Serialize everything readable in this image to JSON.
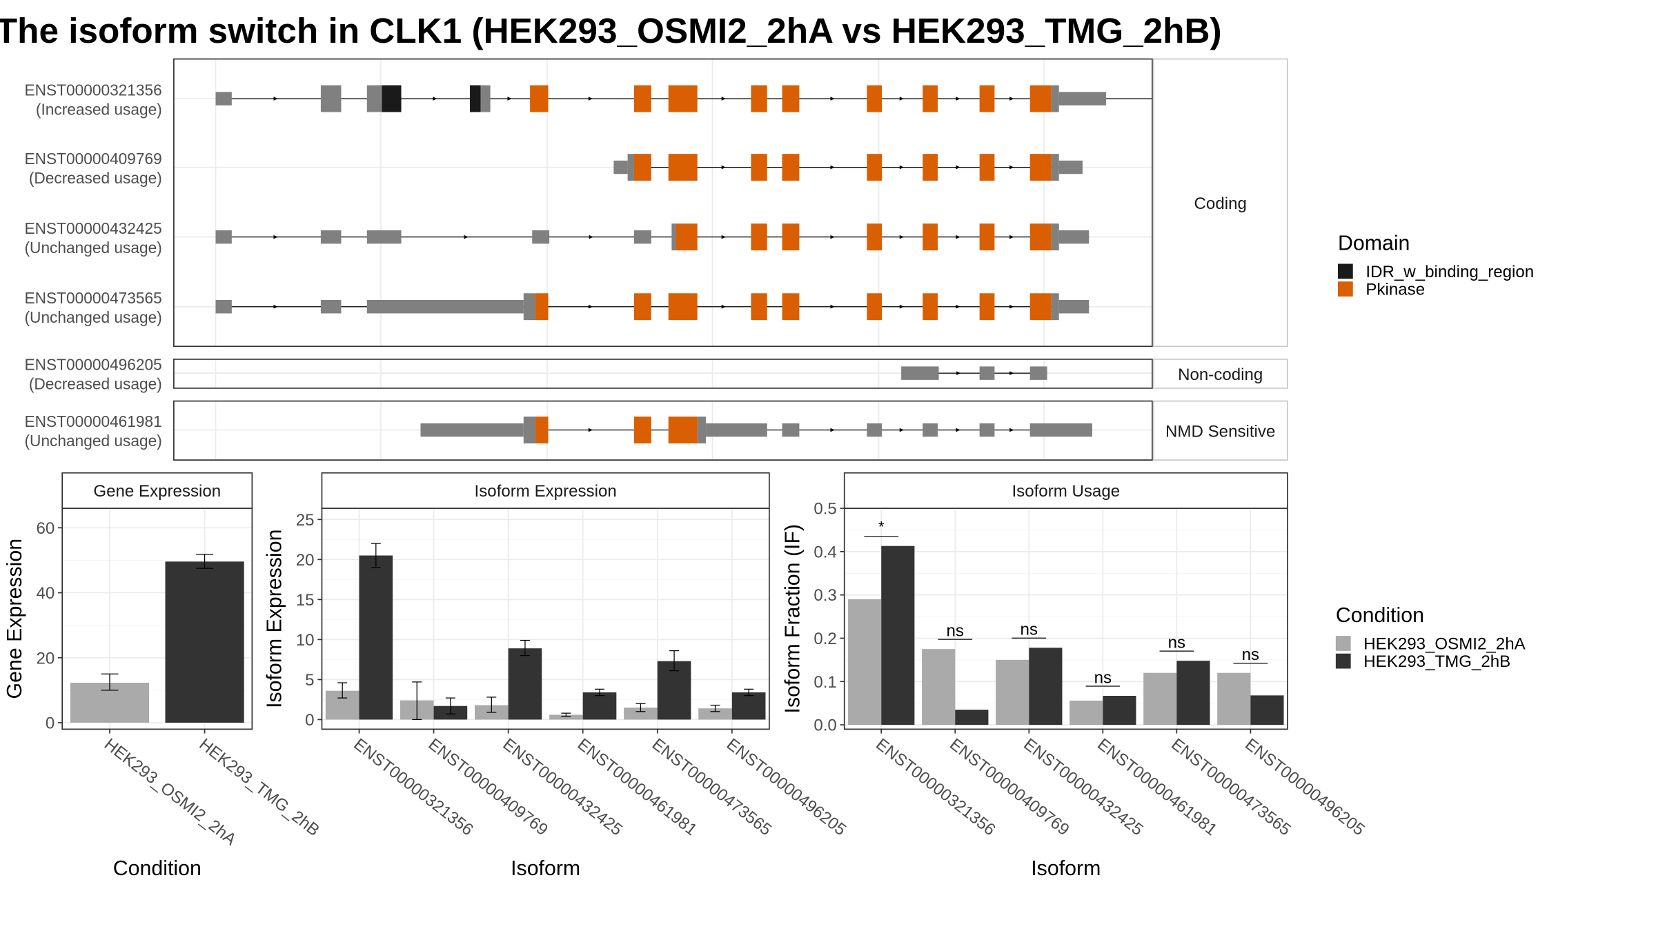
{
  "title": "The isoform switch in CLK1 (HEK293_OSMI2_2hA vs HEK293_TMG_2hB)",
  "colors": {
    "utr": "#808080",
    "idr": "#1a1a1a",
    "pkinase": "#d95f02",
    "cond_a": "#aaaaaa",
    "cond_b": "#333333",
    "grid": "#ebebeb",
    "panel_border": "#333333",
    "strip_border": "#c8c8c8"
  },
  "structure": {
    "facets": [
      "Coding",
      "Non-coding",
      "NMD Sensitive"
    ],
    "legend": {
      "title": "Domain",
      "items": [
        {
          "label": "IDR_w_binding_region",
          "color_key": "idr"
        },
        {
          "label": "Pkinase",
          "color_key": "pkinase"
        }
      ]
    },
    "transcripts": [
      {
        "id": "ENST00000321356",
        "usage": "(Increased usage)",
        "facet": 0,
        "line": [
          63,
          1013
        ],
        "blocks": [
          [
            63,
            78,
            "utr",
            0
          ],
          [
            161,
            180,
            "utr",
            1
          ],
          [
            204,
            218,
            "utr",
            1
          ],
          [
            218,
            236,
            "idr",
            1
          ],
          [
            300,
            310,
            "idr",
            1
          ],
          [
            310,
            319,
            "utr",
            1
          ],
          [
            356,
            373,
            "pkinase",
            1
          ],
          [
            453,
            469,
            "pkinase",
            1
          ],
          [
            485,
            512,
            "pkinase",
            1
          ],
          [
            562,
            577,
            "pkinase",
            1
          ],
          [
            591,
            607,
            "pkinase",
            1
          ],
          [
            670,
            684,
            "pkinase",
            1
          ],
          [
            722,
            736,
            "pkinase",
            1
          ],
          [
            775,
            789,
            "pkinase",
            1
          ],
          [
            822,
            842,
            "pkinase",
            1
          ],
          [
            842,
            849,
            "utr",
            1
          ],
          [
            849,
            893,
            "utr",
            0
          ]
        ]
      },
      {
        "id": "ENST00000409769",
        "usage": "(Decreased usage)",
        "facet": 0,
        "line": [
          434,
          871
        ],
        "blocks": [
          [
            434,
            447,
            "utr",
            0
          ],
          [
            447,
            453,
            "utr",
            1
          ],
          [
            453,
            469,
            "pkinase",
            1
          ],
          [
            485,
            512,
            "pkinase",
            1
          ],
          [
            562,
            577,
            "pkinase",
            1
          ],
          [
            591,
            607,
            "pkinase",
            1
          ],
          [
            670,
            684,
            "pkinase",
            1
          ],
          [
            722,
            736,
            "pkinase",
            1
          ],
          [
            775,
            789,
            "pkinase",
            1
          ],
          [
            822,
            842,
            "pkinase",
            1
          ],
          [
            842,
            849,
            "utr",
            1
          ],
          [
            849,
            871,
            "utr",
            0
          ]
        ]
      },
      {
        "id": "ENST00000432425",
        "usage": "(Unchanged usage)",
        "facet": 0,
        "line": [
          63,
          877
        ],
        "blocks": [
          [
            63,
            78,
            "utr",
            0
          ],
          [
            161,
            180,
            "utr",
            0
          ],
          [
            204,
            236,
            "utr",
            0
          ],
          [
            358,
            374,
            "utr",
            0
          ],
          [
            453,
            469,
            "utr",
            0
          ],
          [
            488,
            492,
            "utr",
            1
          ],
          [
            492,
            512,
            "pkinase",
            1
          ],
          [
            562,
            577,
            "pkinase",
            1
          ],
          [
            591,
            607,
            "pkinase",
            1
          ],
          [
            670,
            684,
            "pkinase",
            1
          ],
          [
            722,
            736,
            "pkinase",
            1
          ],
          [
            775,
            789,
            "pkinase",
            1
          ],
          [
            822,
            842,
            "pkinase",
            1
          ],
          [
            842,
            849,
            "utr",
            1
          ],
          [
            849,
            877,
            "utr",
            0
          ]
        ]
      },
      {
        "id": "ENST00000473565",
        "usage": "(Unchanged usage)",
        "facet": 0,
        "line": [
          63,
          877
        ],
        "blocks": [
          [
            63,
            78,
            "utr",
            0
          ],
          [
            161,
            180,
            "utr",
            0
          ],
          [
            204,
            350,
            "utr",
            0
          ],
          [
            350,
            361,
            "utr",
            1
          ],
          [
            361,
            373,
            "pkinase",
            1
          ],
          [
            453,
            469,
            "pkinase",
            1
          ],
          [
            485,
            512,
            "pkinase",
            1
          ],
          [
            562,
            577,
            "pkinase",
            1
          ],
          [
            591,
            607,
            "pkinase",
            1
          ],
          [
            670,
            684,
            "pkinase",
            1
          ],
          [
            722,
            736,
            "pkinase",
            1
          ],
          [
            775,
            789,
            "pkinase",
            1
          ],
          [
            822,
            842,
            "pkinase",
            1
          ],
          [
            842,
            849,
            "utr",
            1
          ],
          [
            849,
            877,
            "utr",
            0
          ]
        ]
      },
      {
        "id": "ENST00000496205",
        "usage": "(Decreased usage)",
        "facet": 1,
        "line": [
          702,
          838
        ],
        "blocks": [
          [
            702,
            737,
            "utr",
            0
          ],
          [
            775,
            789,
            "utr",
            0
          ],
          [
            822,
            838,
            "utr",
            0
          ]
        ]
      },
      {
        "id": "ENST00000461981",
        "usage": "(Unchanged usage)",
        "facet": 2,
        "line": [
          254,
          880
        ],
        "blocks": [
          [
            254,
            350,
            "utr",
            0
          ],
          [
            350,
            361,
            "utr",
            1
          ],
          [
            361,
            373,
            "pkinase",
            1
          ],
          [
            453,
            469,
            "pkinase",
            1
          ],
          [
            485,
            512,
            "pkinase",
            1
          ],
          [
            512,
            520,
            "utr",
            1
          ],
          [
            520,
            577,
            "utr",
            0
          ],
          [
            591,
            607,
            "utr",
            0
          ],
          [
            670,
            684,
            "utr",
            0
          ],
          [
            722,
            736,
            "utr",
            0
          ],
          [
            775,
            789,
            "utr",
            0
          ],
          [
            822,
            880,
            "utr",
            0
          ]
        ]
      }
    ]
  },
  "chart_data": [
    {
      "type": "bar",
      "title": "Gene Expression",
      "xlabel": "Condition",
      "ylabel": "Gene Expression",
      "categories": [
        "HEK293_OSMI2_2hA",
        "HEK293_TMG_2hB"
      ],
      "values": [
        12.3,
        49.6
      ],
      "errors": [
        [
          10,
          15
        ],
        [
          47.5,
          51.8
        ]
      ],
      "color_keys": [
        "cond_a",
        "cond_b"
      ],
      "ylim": [
        -2,
        66
      ],
      "yticks": [
        0,
        20,
        40,
        60
      ],
      "grid": true
    },
    {
      "type": "bar",
      "title": "Isoform Expression",
      "xlabel": "Isoform",
      "ylabel": "Isoform Expression",
      "categories": [
        "ENST00000321356",
        "ENST00000409769",
        "ENST00000432425",
        "ENST00000461981",
        "ENST00000473565",
        "ENST00000496205"
      ],
      "series": [
        {
          "name": "HEK293_OSMI2_2hA",
          "color_key": "cond_a",
          "values": [
            3.6,
            2.4,
            1.8,
            0.6,
            1.5,
            1.4
          ],
          "errors": [
            [
              2.7,
              4.6
            ],
            [
              0,
              4.7
            ],
            [
              0.9,
              2.8
            ],
            [
              0.4,
              0.8
            ],
            [
              1.0,
              2.0
            ],
            [
              1.0,
              1.8
            ]
          ]
        },
        {
          "name": "HEK293_TMG_2hB",
          "color_key": "cond_b",
          "values": [
            20.5,
            1.7,
            8.9,
            3.4,
            7.3,
            3.4
          ],
          "errors": [
            [
              19.0,
              22.0
            ],
            [
              0.7,
              2.7
            ],
            [
              8.0,
              9.9
            ],
            [
              3.0,
              3.8
            ],
            [
              6.1,
              8.6
            ],
            [
              3.0,
              3.8
            ]
          ]
        }
      ],
      "ylim": [
        -1.2,
        26.4
      ],
      "yticks": [
        0,
        5,
        10,
        15,
        20,
        25
      ],
      "grid": true
    },
    {
      "type": "bar",
      "title": "Isoform Usage",
      "xlabel": "Isoform",
      "ylabel": "Isoform Fraction (IF)",
      "categories": [
        "ENST00000321356",
        "ENST00000409769",
        "ENST00000432425",
        "ENST00000461981",
        "ENST00000473565",
        "ENST00000496205"
      ],
      "series": [
        {
          "name": "HEK293_OSMI2_2hA",
          "color_key": "cond_a",
          "values": [
            0.29,
            0.175,
            0.15,
            0.056,
            0.12,
            0.12
          ]
        },
        {
          "name": "HEK293_TMG_2hB",
          "color_key": "cond_b",
          "values": [
            0.413,
            0.035,
            0.178,
            0.067,
            0.148,
            0.068
          ]
        }
      ],
      "significance": [
        "*",
        "ns",
        "ns",
        "ns",
        "ns",
        "ns"
      ],
      "ylim": [
        -0.01,
        0.5
      ],
      "yticks": [
        "0.0",
        "0.1",
        "0.2",
        "0.3",
        "0.4",
        "0.5"
      ],
      "grid": true,
      "legend": {
        "title": "Condition",
        "entries": [
          "HEK293_OSMI2_2hA",
          "HEK293_TMG_2hB"
        ]
      }
    }
  ]
}
